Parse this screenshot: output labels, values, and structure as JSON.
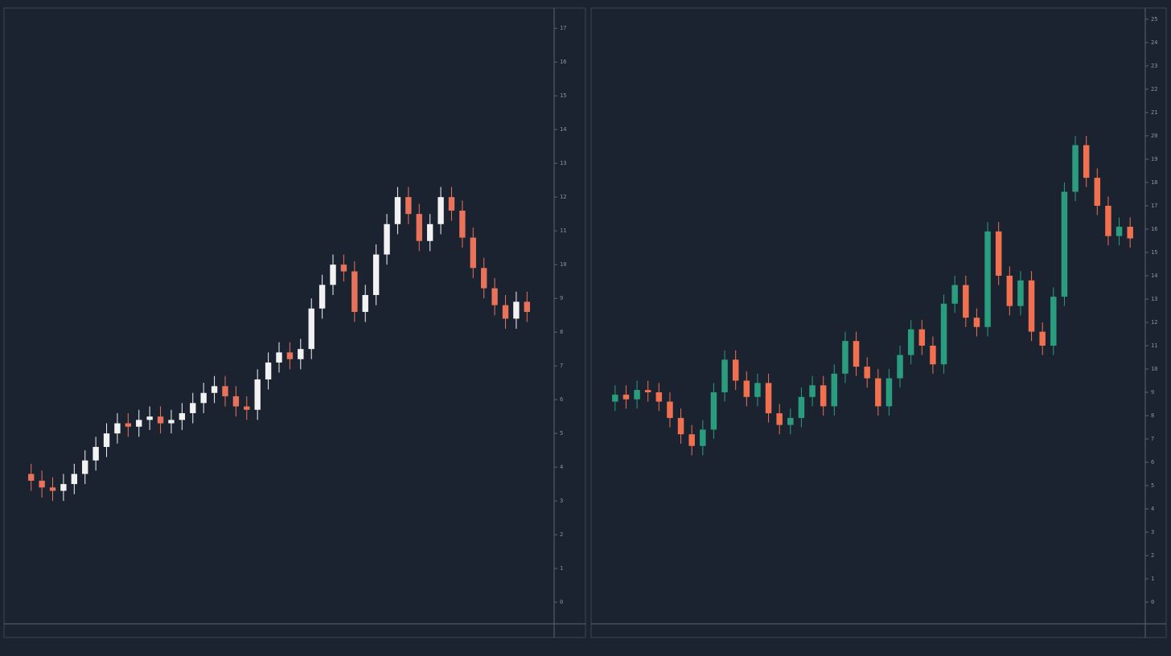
{
  "chart_data": [
    {
      "type": "candlestick",
      "up_color": "#f2f2f2",
      "down_color": "#e8735a",
      "ylim": [
        -0.64,
        17.6
      ],
      "yticks": [
        0,
        1,
        2,
        3,
        4,
        5,
        6,
        7,
        8,
        9,
        10,
        11,
        12,
        13,
        14,
        15,
        16,
        17
      ],
      "open": [
        3.8,
        3.6,
        3.4,
        3.3,
        3.5,
        3.8,
        4.2,
        4.6,
        5.0,
        5.3,
        5.2,
        5.4,
        5.5,
        5.3,
        5.4,
        5.6,
        5.9,
        6.2,
        6.4,
        6.1,
        5.8,
        5.7,
        6.6,
        7.1,
        7.4,
        7.2,
        7.5,
        8.7,
        9.4,
        10.0,
        9.8,
        8.6,
        9.1,
        10.3,
        11.2,
        12.0,
        11.5,
        10.7,
        11.2,
        12.0,
        11.6,
        10.8,
        9.9,
        9.3,
        8.8,
        8.4,
        8.9
      ],
      "high": [
        4.1,
        3.9,
        3.7,
        3.8,
        4.1,
        4.5,
        4.9,
        5.3,
        5.6,
        5.6,
        5.7,
        5.8,
        5.8,
        5.7,
        5.9,
        6.2,
        6.5,
        6.7,
        6.7,
        6.4,
        6.1,
        6.9,
        7.4,
        7.7,
        7.7,
        7.8,
        9.0,
        9.7,
        10.3,
        10.3,
        10.1,
        9.4,
        10.6,
        11.5,
        12.3,
        12.3,
        11.8,
        11.5,
        12.3,
        12.3,
        11.9,
        11.1,
        10.2,
        9.6,
        9.1,
        9.2,
        9.2
      ],
      "low": [
        3.3,
        3.1,
        3.0,
        3.0,
        3.2,
        3.5,
        3.9,
        4.3,
        4.7,
        4.9,
        4.9,
        5.1,
        5.0,
        5.0,
        5.1,
        5.3,
        5.6,
        5.9,
        5.8,
        5.5,
        5.4,
        5.4,
        6.3,
        6.8,
        6.9,
        6.9,
        7.2,
        8.4,
        9.1,
        9.5,
        8.3,
        8.3,
        8.8,
        10.0,
        10.9,
        11.2,
        10.4,
        10.4,
        10.9,
        11.3,
        10.5,
        9.6,
        9.0,
        8.5,
        8.1,
        8.1,
        8.3
      ],
      "close": [
        3.6,
        3.4,
        3.3,
        3.5,
        3.8,
        4.2,
        4.6,
        5.0,
        5.3,
        5.2,
        5.4,
        5.5,
        5.3,
        5.4,
        5.6,
        5.9,
        6.2,
        6.4,
        6.1,
        5.8,
        5.7,
        6.6,
        7.1,
        7.4,
        7.2,
        7.5,
        8.7,
        9.4,
        10.0,
        9.8,
        8.6,
        9.1,
        10.3,
        11.2,
        12.0,
        11.5,
        10.7,
        11.2,
        12.0,
        11.6,
        10.8,
        9.9,
        9.3,
        8.8,
        8.4,
        8.9,
        8.6
      ]
    },
    {
      "type": "candlestick",
      "up_color": "#2a9d7f",
      "down_color": "#f0704f",
      "ylim": [
        -0.93,
        25.48
      ],
      "yticks": [
        0,
        1,
        2,
        3,
        4,
        5,
        6,
        7,
        8,
        9,
        10,
        11,
        12,
        13,
        14,
        15,
        16,
        17,
        18,
        19,
        20,
        21,
        22,
        23,
        24,
        25
      ],
      "open": [
        8.6,
        8.9,
        8.7,
        9.1,
        9.0,
        8.6,
        7.9,
        7.2,
        6.7,
        7.4,
        9.0,
        10.4,
        9.5,
        8.8,
        9.4,
        8.1,
        7.6,
        7.9,
        8.8,
        9.3,
        8.4,
        9.8,
        11.2,
        10.1,
        9.6,
        8.4,
        9.6,
        10.6,
        11.7,
        11.0,
        10.2,
        12.8,
        13.6,
        12.2,
        11.8,
        15.9,
        14.0,
        12.7,
        13.8,
        11.6,
        11.0,
        13.1,
        17.6,
        19.6,
        18.2,
        17.0,
        15.7,
        16.1
      ],
      "high": [
        9.3,
        9.3,
        9.5,
        9.5,
        9.4,
        9.0,
        8.3,
        7.6,
        7.8,
        9.4,
        10.8,
        10.8,
        9.9,
        9.8,
        9.8,
        8.5,
        8.3,
        9.2,
        9.7,
        9.7,
        10.2,
        11.6,
        11.6,
        10.5,
        10.0,
        10.0,
        11.0,
        12.1,
        12.1,
        11.4,
        13.2,
        14.0,
        14.0,
        12.6,
        16.3,
        16.3,
        14.4,
        14.2,
        14.2,
        12.0,
        13.5,
        18.0,
        20.0,
        20.0,
        18.6,
        17.4,
        16.5,
        16.5
      ],
      "low": [
        8.2,
        8.3,
        8.3,
        8.6,
        8.2,
        7.5,
        6.8,
        6.3,
        6.3,
        7.0,
        8.6,
        9.1,
        8.4,
        8.4,
        7.7,
        7.2,
        7.2,
        7.5,
        8.4,
        8.0,
        8.0,
        9.4,
        9.7,
        9.2,
        8.0,
        8.0,
        9.2,
        10.2,
        10.6,
        9.8,
        9.8,
        12.4,
        11.8,
        11.4,
        11.4,
        13.6,
        12.3,
        12.3,
        11.2,
        10.6,
        10.6,
        12.7,
        17.2,
        17.8,
        16.6,
        15.3,
        15.3,
        15.2
      ],
      "close": [
        8.9,
        8.7,
        9.1,
        9.0,
        8.6,
        7.9,
        7.2,
        6.7,
        7.4,
        9.0,
        10.4,
        9.5,
        8.8,
        9.4,
        8.1,
        7.6,
        7.9,
        8.8,
        9.3,
        8.4,
        9.8,
        11.2,
        10.1,
        9.6,
        8.4,
        9.6,
        10.6,
        11.7,
        11.0,
        10.2,
        12.8,
        13.6,
        12.2,
        11.8,
        15.9,
        14.0,
        12.7,
        13.8,
        11.6,
        11.0,
        13.1,
        17.6,
        19.6,
        18.2,
        17.0,
        15.7,
        16.1,
        15.6
      ]
    }
  ]
}
